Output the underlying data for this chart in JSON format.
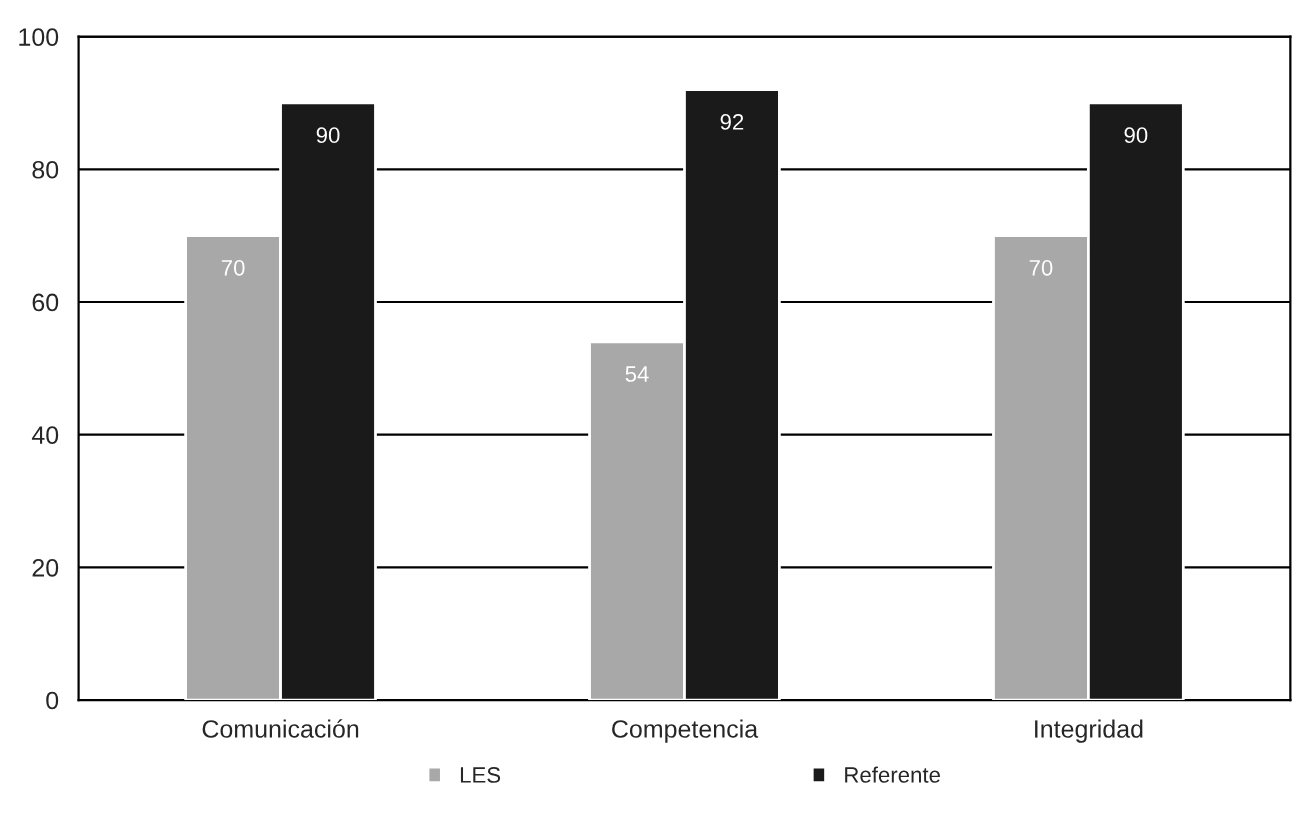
{
  "chart_data": {
    "type": "bar",
    "categories": [
      "Comunicación",
      "Competencia",
      "Integridad"
    ],
    "series": [
      {
        "name": "LES",
        "color": "#a8a8a8",
        "values": [
          70,
          54,
          70
        ]
      },
      {
        "name": "Referente",
        "color": "#1a1a1a",
        "values": [
          90,
          92,
          90
        ]
      }
    ],
    "ylim": [
      0,
      100
    ],
    "yticks": [
      0,
      20,
      40,
      60,
      80,
      100
    ],
    "grid": "y",
    "legend": "bottom",
    "data_labels": true
  }
}
